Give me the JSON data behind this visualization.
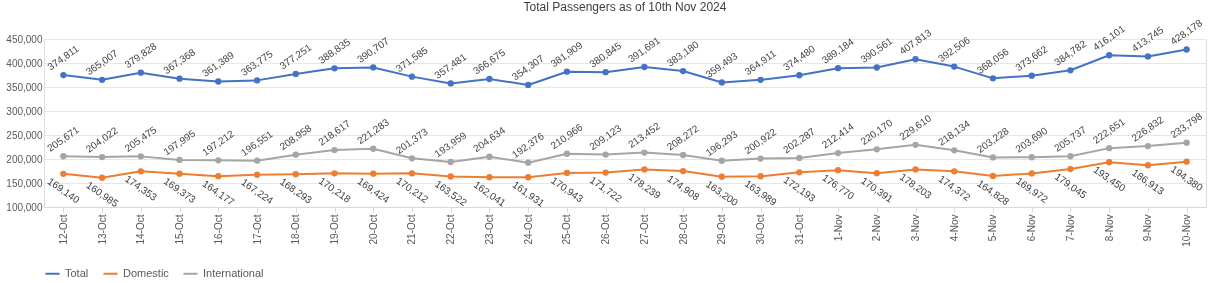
{
  "chart_data": {
    "type": "line",
    "title": "Total Passengers as of 10th Nov 2024",
    "categories": [
      "12-Oct",
      "13-Oct",
      "14-Oct",
      "15-Oct",
      "16-Oct",
      "17-Oct",
      "18-Oct",
      "19-Oct",
      "20-Oct",
      "21-Oct",
      "22-Oct",
      "23-Oct",
      "24-Oct",
      "25-Oct",
      "26-Oct",
      "27-Oct",
      "28-Oct",
      "29-Oct",
      "30-Oct",
      "31-Oct",
      "1-Nov",
      "2-Nov",
      "3-Nov",
      "4-Nov",
      "5-Nov",
      "6-Nov",
      "7-Nov",
      "8-Nov",
      "9-Nov",
      "10-Nov"
    ],
    "series": [
      {
        "name": "Total",
        "color": "#4472c4",
        "values": [
          374811,
          365007,
          379828,
          367368,
          361389,
          363775,
          377251,
          388835,
          390707,
          371585,
          357481,
          366675,
          354307,
          381909,
          380845,
          391691,
          383180,
          359493,
          364911,
          374480,
          389184,
          390561,
          407813,
          392506,
          368056,
          373662,
          384782,
          416101,
          413745,
          428178
        ],
        "value_labels": [
          "374,811",
          "365,007",
          "379,828",
          "367,368",
          "361,389",
          "363,775",
          "377,251",
          "388,835",
          "390,707",
          "371,585",
          "357,481",
          "366,675",
          "354,307",
          "381,909",
          "380,845",
          "391,691",
          "383,180",
          "359,493",
          "364,911",
          "374,480",
          "389,184",
          "390,561",
          "407,813",
          "392,506",
          "368,056",
          "373,662",
          "384,782",
          "416,101",
          "413,745",
          "428,178"
        ]
      },
      {
        "name": "Domestic",
        "color": "#ed7d31",
        "values": [
          169140,
          160985,
          174353,
          169373,
          164177,
          167224,
          168293,
          170218,
          169424,
          170212,
          163522,
          162041,
          161931,
          170943,
          171722,
          178239,
          174908,
          163200,
          163989,
          172193,
          176770,
          170391,
          178203,
          174372,
          164828,
          169972,
          179045,
          193450,
          186913,
          194380
        ],
        "value_labels": [
          "169,140",
          "160,985",
          "174,353",
          "169,373",
          "164,177",
          "167,224",
          "168,293",
          "170,218",
          "169,424",
          "170,212",
          "163,522",
          "162,041",
          "161,931",
          "170,943",
          "171,722",
          "178,239",
          "174,908",
          "163,200",
          "163,989",
          "172,193",
          "176,770",
          "170,391",
          "178,203",
          "174,372",
          "164,828",
          "169,972",
          "179,045",
          "193,450",
          "186,913",
          "194,380"
        ]
      },
      {
        "name": "International",
        "color": "#a5a5a5",
        "values": [
          205671,
          204022,
          205475,
          197995,
          197212,
          196551,
          208958,
          218617,
          221283,
          201373,
          193959,
          204634,
          192376,
          210966,
          209123,
          213452,
          208272,
          196293,
          200922,
          202287,
          212414,
          220170,
          229610,
          218134,
          203228,
          203690,
          205737,
          222651,
          226832,
          233798
        ],
        "value_labels": [
          "205,671",
          "204,022",
          "205,475",
          "197,995",
          "197,212",
          "196,551",
          "208,958",
          "218,617",
          "221,283",
          "201,373",
          "193,959",
          "204,634",
          "192,376",
          "210,966",
          "209,123",
          "213,452",
          "208,272",
          "196,293",
          "200,922",
          "202,287",
          "212,414",
          "220,170",
          "229,610",
          "218,134",
          "203,228",
          "203,690",
          "205,737",
          "222,651",
          "226,832",
          "233,798"
        ]
      }
    ],
    "ylim": [
      100000,
      450000
    ],
    "yticks": [
      {
        "value": 100000,
        "label": "100,000"
      },
      {
        "value": 150000,
        "label": "150,000"
      },
      {
        "value": 200000,
        "label": "200,000"
      },
      {
        "value": 250000,
        "label": "250,000"
      },
      {
        "value": 300000,
        "label": "300,000"
      },
      {
        "value": 350000,
        "label": "350,000"
      },
      {
        "value": 400000,
        "label": "400,000"
      },
      {
        "value": 450000,
        "label": "450,000"
      }
    ],
    "grid": "y",
    "legend": "bottom",
    "marker": "circle",
    "line_style": "solid"
  }
}
